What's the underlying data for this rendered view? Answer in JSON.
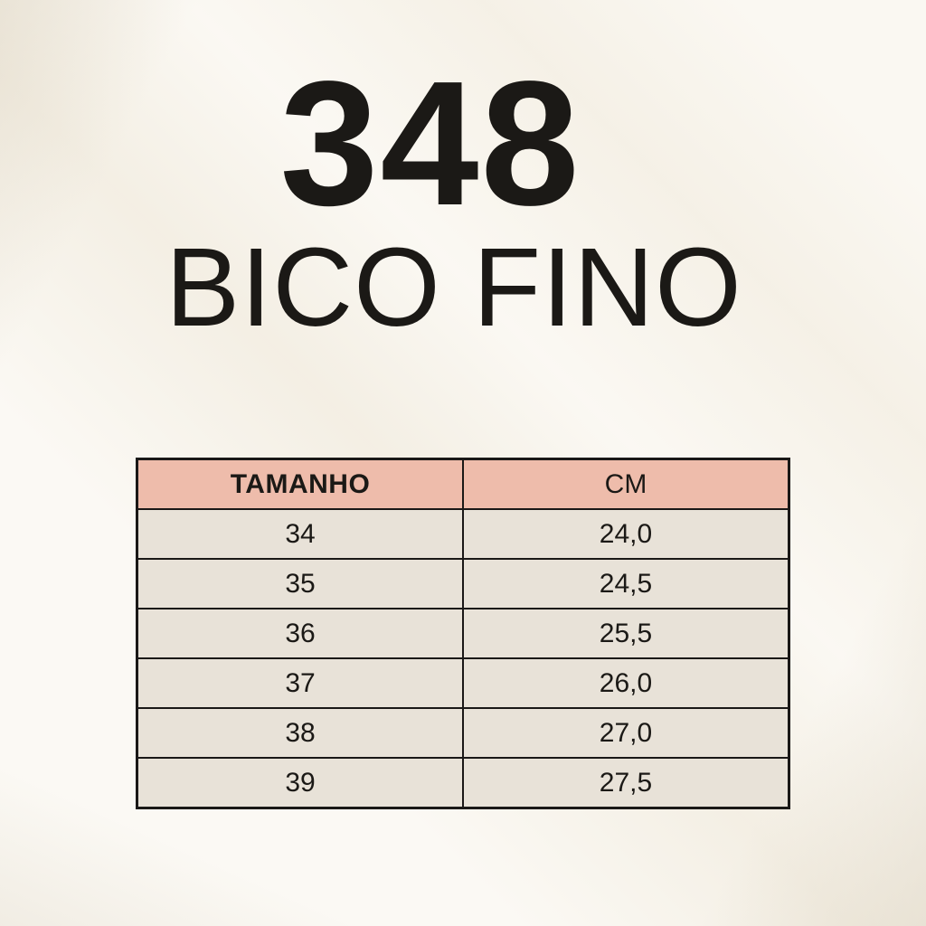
{
  "chart_data": {
    "type": "table",
    "title": "348",
    "subtitle": "BICO FINO",
    "columns": [
      "TAMANHO",
      "CM"
    ],
    "rows": [
      [
        "34",
        "24,0"
      ],
      [
        "35",
        "24,5"
      ],
      [
        "36",
        "25,5"
      ],
      [
        "37",
        "26,0"
      ],
      [
        "38",
        "27,0"
      ],
      [
        "39",
        "27,5"
      ]
    ]
  },
  "colors": {
    "background": "#f8f4eb",
    "table_header_bg": "#eebcab",
    "table_row_bg": "#e8e2d8",
    "table_border": "#1a1817",
    "text": "#1b1916"
  }
}
